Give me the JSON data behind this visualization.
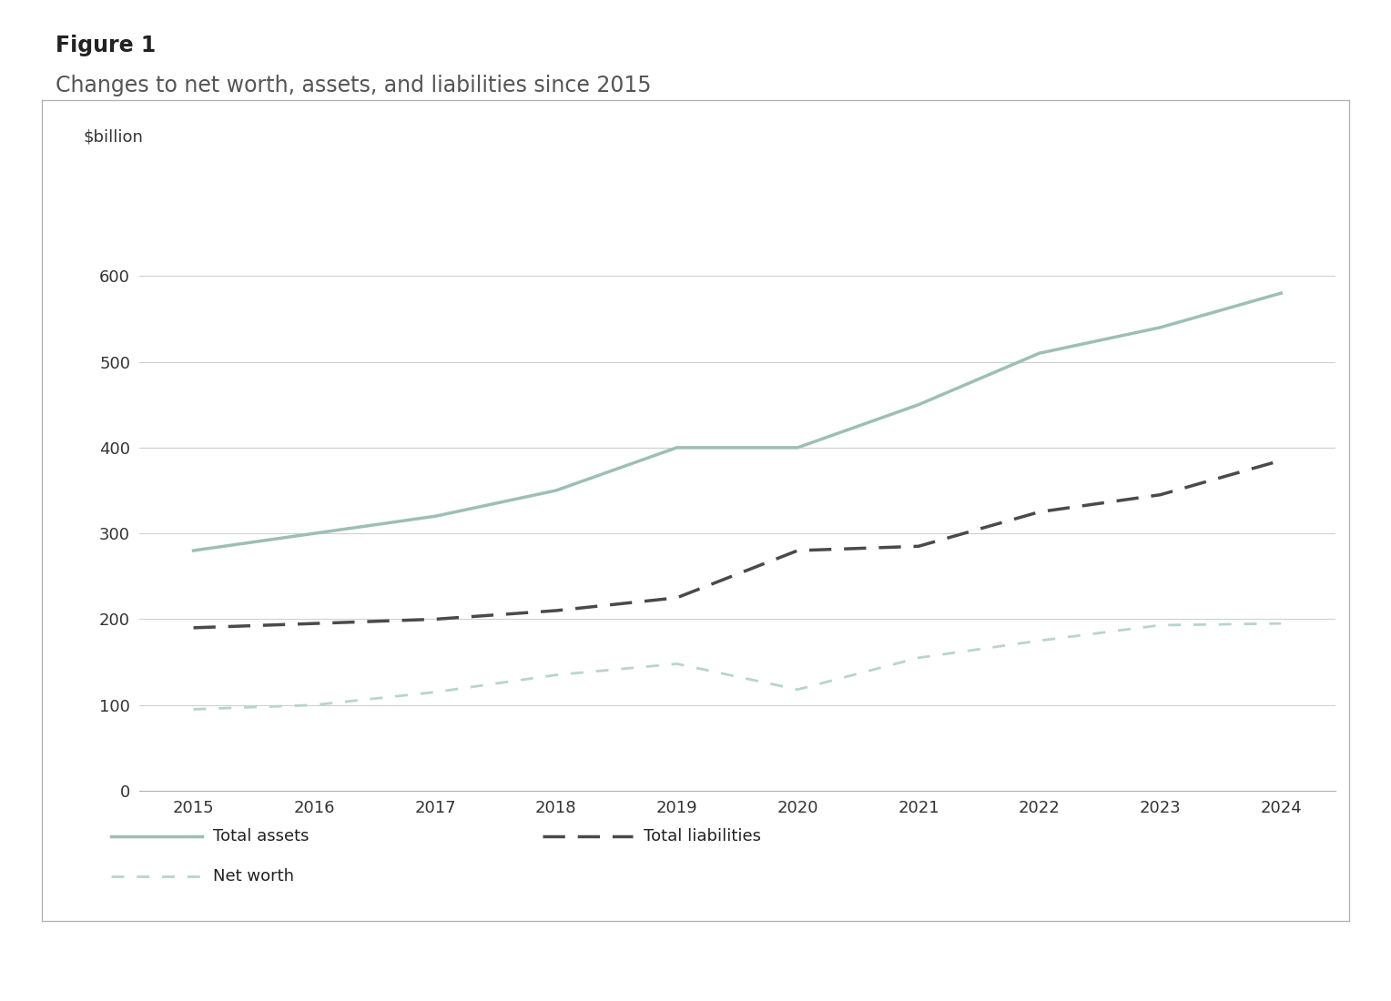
{
  "title_bold": "Figure 1",
  "title_sub": "Changes to net worth, assets, and liabilities since 2015",
  "ylabel": "$billion",
  "years": [
    2015,
    2016,
    2017,
    2018,
    2019,
    2020,
    2021,
    2022,
    2023,
    2024
  ],
  "total_assets": [
    280,
    300,
    320,
    350,
    400,
    400,
    450,
    510,
    540,
    580
  ],
  "total_liabilities": [
    190,
    195,
    200,
    210,
    225,
    280,
    285,
    325,
    345,
    385
  ],
  "net_worth": [
    95,
    100,
    115,
    135,
    148,
    118,
    155,
    175,
    193,
    195
  ],
  "assets_color": "#9dbfb5",
  "liabilities_color": "#4a4a4a",
  "net_worth_color": "#b8d4cd",
  "grid_color": "#d0d0d0",
  "box_edge_color": "#b0b0b0",
  "ylim": [
    0,
    700
  ],
  "yticks": [
    0,
    100,
    200,
    300,
    400,
    500,
    600
  ],
  "title_fontsize": 17,
  "subtitle_fontsize": 17,
  "ylabel_fontsize": 13,
  "tick_fontsize": 13,
  "legend_fontsize": 13
}
